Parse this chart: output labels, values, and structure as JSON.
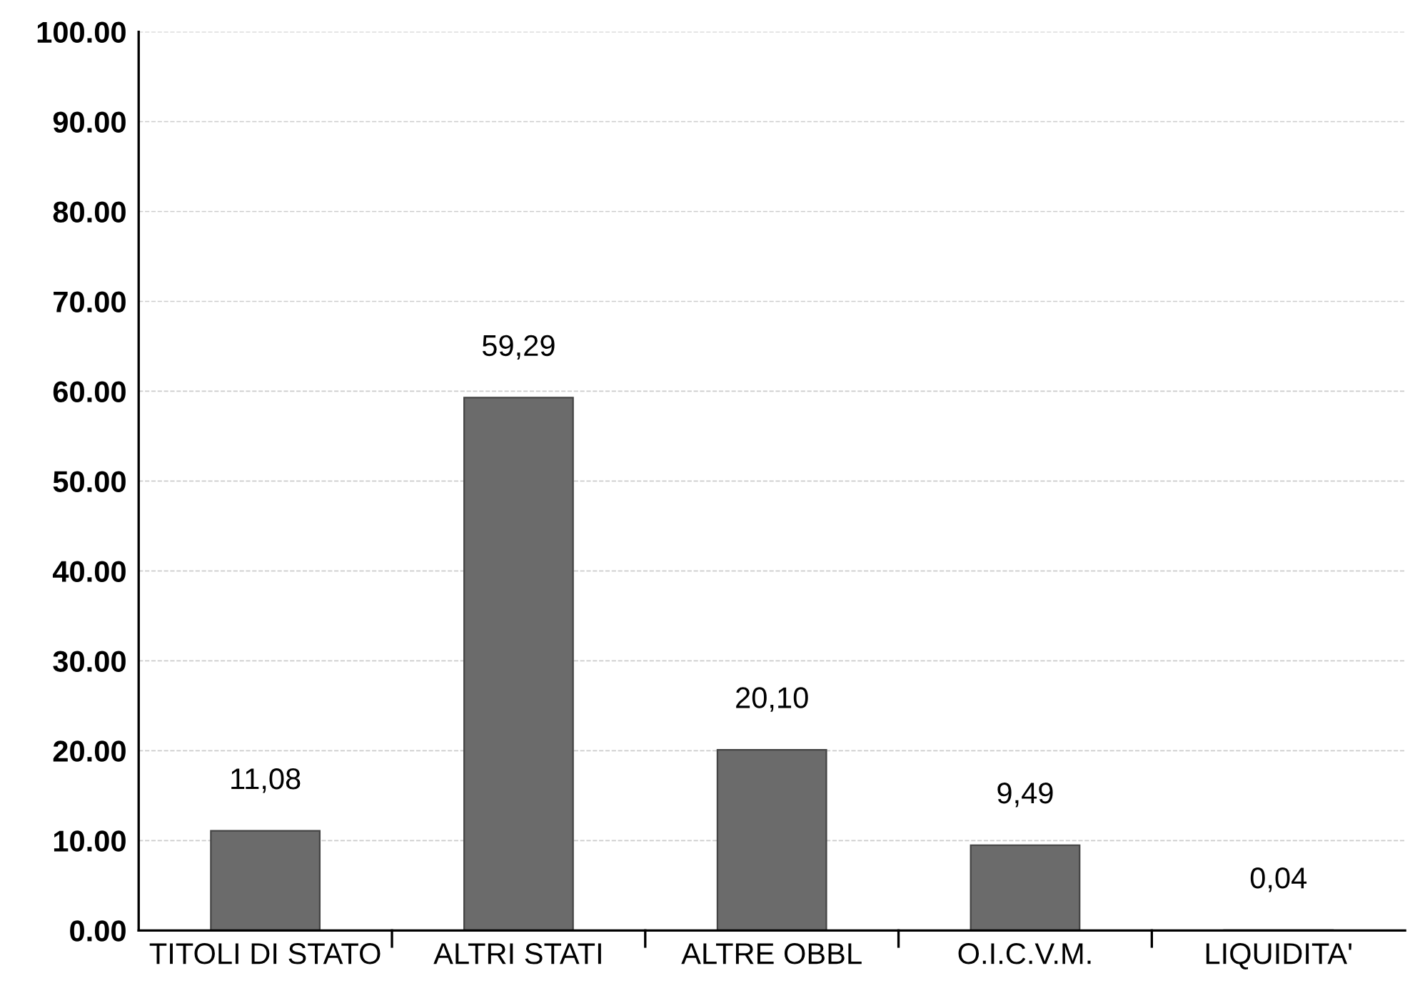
{
  "chart_data": {
    "type": "bar",
    "categories": [
      "TITOLI DI STATO",
      "ALTRI STATI",
      "ALTRE OBBL",
      "O.I.C.V.M.",
      "LIQUIDITA'"
    ],
    "values": [
      11.08,
      59.29,
      20.1,
      9.49,
      0.04
    ],
    "value_labels": [
      "11,08",
      "59,29",
      "20,10",
      "9,49",
      "0,04"
    ],
    "color": "#6b6b6b",
    "ylim": [
      0,
      100
    ],
    "yticks": [
      {
        "value": 0,
        "label": "0.00"
      },
      {
        "value": 10,
        "label": "10.00"
      },
      {
        "value": 20,
        "label": "20.00"
      },
      {
        "value": 30,
        "label": "30.00"
      },
      {
        "value": 40,
        "label": "40.00"
      },
      {
        "value": 50,
        "label": "50.00"
      },
      {
        "value": 60,
        "label": "60.00"
      },
      {
        "value": 70,
        "label": "70.00"
      },
      {
        "value": 80,
        "label": "80.00"
      },
      {
        "value": 90,
        "label": "90.00"
      },
      {
        "value": 100,
        "label": "100.00"
      }
    ],
    "grid": "y",
    "legend": false
  }
}
